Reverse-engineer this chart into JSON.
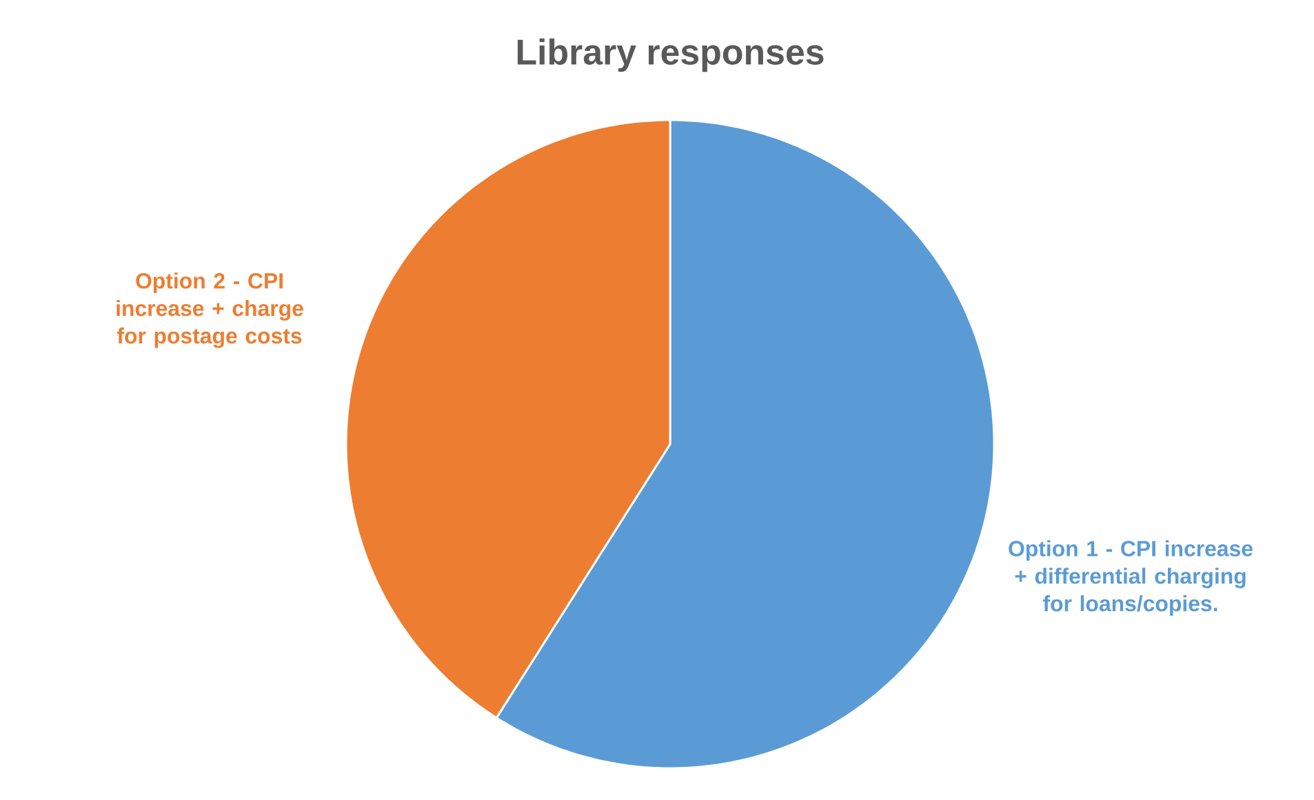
{
  "chart_data": {
    "type": "pie",
    "title": "Library responses",
    "categories": [
      "Option 1 - CPI increase + differential charging for loans/copies.",
      "Option 2 - CPI increase + charge for postage costs"
    ],
    "values": [
      59,
      41
    ],
    "colors": [
      "#5b9bd5",
      "#ed7d31"
    ]
  }
}
